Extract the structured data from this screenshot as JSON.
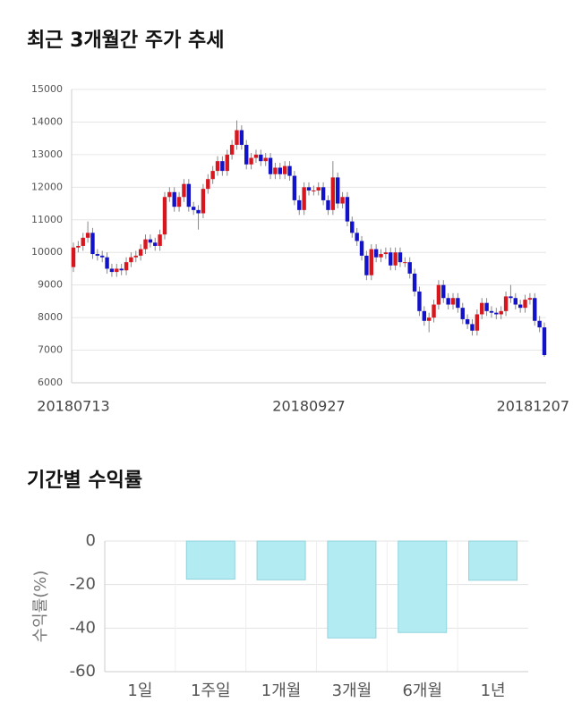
{
  "chart_data": [
    {
      "type": "candlestick",
      "title": "최근 3개월간 주가 추세",
      "categories": [
        "20180713",
        null,
        null,
        null,
        null,
        null,
        null,
        null,
        null,
        null,
        null,
        null,
        null,
        null,
        null,
        null,
        null,
        null,
        null,
        null,
        null,
        null,
        null,
        null,
        null,
        null,
        null,
        null,
        null,
        null,
        null,
        null,
        null,
        null,
        null,
        null,
        null,
        null,
        null,
        null,
        null,
        null,
        null,
        null,
        null,
        null,
        null,
        null,
        null,
        "20180927",
        null,
        null,
        null,
        null,
        null,
        null,
        null,
        null,
        null,
        null,
        null,
        null,
        null,
        null,
        null,
        null,
        null,
        null,
        null,
        null,
        null,
        null,
        null,
        null,
        null,
        null,
        null,
        null,
        null,
        null,
        null,
        null,
        null,
        null,
        null,
        null,
        null,
        null,
        null,
        null,
        null,
        null,
        null,
        null,
        null,
        null,
        null,
        null,
        "20181207"
      ],
      "open": [
        9550,
        10150,
        10200,
        10450,
        10600,
        9950,
        9900,
        9850,
        9500,
        9400,
        9500,
        9450,
        9700,
        9850,
        9900,
        10100,
        10400,
        10300,
        10200,
        10550,
        11700,
        11850,
        11400,
        11700,
        12100,
        11400,
        11300,
        11200,
        11950,
        12250,
        12500,
        12800,
        12500,
        13000,
        13300,
        13750,
        13300,
        12700,
        12900,
        13000,
        12800,
        12900,
        12400,
        12600,
        12400,
        12650,
        12350,
        11600,
        11300,
        12000,
        11900,
        11900,
        12000,
        11600,
        11300,
        12300,
        11500,
        11700,
        10950,
        10600,
        10350,
        9900,
        9300,
        10100,
        9850,
        9950,
        10000,
        9600,
        10000,
        9700,
        9700,
        9350,
        8800,
        8200,
        7900,
        8000,
        8400,
        9000,
        8600,
        8400,
        8600,
        8300,
        7950,
        7800,
        7600,
        8100,
        8450,
        8200,
        8150,
        8100,
        8200,
        8650,
        8600,
        8400,
        8300,
        8550,
        8600,
        7900,
        7700
      ],
      "high": [
        10300,
        10350,
        10600,
        10950,
        10750,
        10100,
        10050,
        10000,
        9650,
        9650,
        9650,
        9850,
        10000,
        10050,
        10250,
        10550,
        10550,
        10450,
        10700,
        11850,
        12000,
        12000,
        11850,
        12250,
        12250,
        11550,
        11450,
        12100,
        12400,
        12650,
        12950,
        12950,
        13150,
        13450,
        14050,
        13900,
        13450,
        13050,
        13150,
        13150,
        13050,
        13050,
        12750,
        12750,
        12800,
        12800,
        12500,
        11750,
        12150,
        12150,
        12050,
        12150,
        12150,
        11750,
        12800,
        12450,
        11850,
        11850,
        11100,
        10750,
        10500,
        10050,
        10250,
        10250,
        10100,
        10150,
        10150,
        10150,
        10150,
        9850,
        9850,
        9500,
        8950,
        8350,
        8150,
        8550,
        9150,
        9150,
        8750,
        8750,
        8750,
        8450,
        8100,
        7950,
        8250,
        8600,
        8600,
        8350,
        8300,
        8350,
        8800,
        9000,
        8750,
        8550,
        8700,
        8750,
        8750,
        8050,
        7850
      ],
      "low": [
        9400,
        10000,
        10050,
        10300,
        9800,
        9750,
        9700,
        9350,
        9250,
        9250,
        9300,
        9300,
        9550,
        9700,
        9750,
        9950,
        10150,
        10050,
        10050,
        10400,
        11550,
        11250,
        11250,
        11550,
        11250,
        11150,
        10700,
        11050,
        11800,
        12100,
        12350,
        12350,
        12350,
        12850,
        13150,
        13150,
        12550,
        12550,
        12750,
        12650,
        12650,
        12250,
        12250,
        12250,
        12250,
        12200,
        11450,
        11150,
        11150,
        11750,
        11750,
        11750,
        11450,
        11150,
        11150,
        11350,
        11350,
        10800,
        10450,
        10200,
        9750,
        9150,
        9150,
        9700,
        9700,
        9800,
        9450,
        9450,
        9550,
        9550,
        9200,
        8650,
        8050,
        7750,
        7550,
        7850,
        8250,
        8450,
        8250,
        8250,
        8150,
        7800,
        7650,
        7450,
        7450,
        7950,
        8050,
        8000,
        7950,
        7950,
        8050,
        8450,
        8250,
        8150,
        8150,
        8400,
        7750,
        7550,
        6800
      ],
      "close": [
        10150,
        10200,
        10450,
        10600,
        9950,
        9900,
        9850,
        9500,
        9400,
        9500,
        9450,
        9700,
        9850,
        9900,
        10100,
        10400,
        10300,
        10200,
        10550,
        11700,
        11850,
        11400,
        11700,
        12100,
        11400,
        11300,
        11200,
        11950,
        12250,
        12500,
        12800,
        12500,
        13000,
        13300,
        13750,
        13300,
        12700,
        12900,
        13000,
        12800,
        12900,
        12400,
        12600,
        12400,
        12650,
        12350,
        11600,
        11300,
        12000,
        11900,
        11900,
        12000,
        11600,
        11300,
        12300,
        11500,
        11700,
        10950,
        10600,
        10350,
        9900,
        9300,
        10100,
        9850,
        9950,
        10000,
        9600,
        10000,
        9700,
        9700,
        9350,
        8800,
        8200,
        7900,
        8000,
        8400,
        9000,
        8600,
        8400,
        8600,
        8300,
        7950,
        7800,
        7600,
        8100,
        8450,
        8200,
        8150,
        8100,
        8200,
        8650,
        8600,
        8400,
        8300,
        8550,
        8600,
        7900,
        7700,
        6850
      ],
      "up_color": "#d7161e",
      "down_color": "#1212c8",
      "ylim": [
        6000,
        15000
      ],
      "yticks": [
        6000,
        7000,
        8000,
        9000,
        10000,
        11000,
        12000,
        13000,
        14000,
        15000
      ],
      "grid": true
    },
    {
      "type": "bar",
      "title": "기간별 수익률",
      "ylabel": "수익률(%)",
      "categories": [
        "1일",
        "1주일",
        "1개월",
        "3개월",
        "6개월",
        "1년"
      ],
      "values": [
        0,
        -17.5,
        -17.8,
        -44.5,
        -42,
        -18
      ],
      "color": "#b3ebf2",
      "ylim": [
        -60,
        0
      ],
      "yticks": [
        -60,
        -40,
        -20,
        0
      ],
      "grid": true
    }
  ]
}
